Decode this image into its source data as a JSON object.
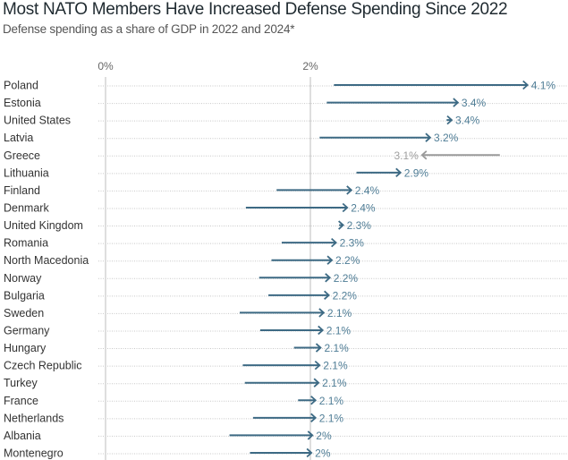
{
  "chart_data": {
    "type": "arrow",
    "title": "Most NATO Members Have Increased Defense Spending Since 2022",
    "subtitle": "Defense spending as a share of GDP in 2022 and 2024*",
    "x_ticks": [
      "0%",
      "2%"
    ],
    "x_tick_values": [
      0,
      2
    ],
    "xlim": [
      0,
      4.4
    ],
    "grid": "dotted horizontal row lines, solid vertical lines at ticks",
    "colors": {
      "increase": "#3d6a84",
      "increase_label": "#4f7d96",
      "decrease": "#9a9a9a",
      "decrease_label": "#a0a0a0"
    },
    "rows": [
      {
        "country": "Poland",
        "v2022": 2.23,
        "v2024": 4.12,
        "label": "4.1%"
      },
      {
        "country": "Estonia",
        "v2022": 2.16,
        "v2024": 3.44,
        "label": "3.4%"
      },
      {
        "country": "United States",
        "v2022": 3.33,
        "v2024": 3.38,
        "label": "3.4%"
      },
      {
        "country": "Latvia",
        "v2022": 2.09,
        "v2024": 3.17,
        "label": "3.2%"
      },
      {
        "country": "Greece",
        "v2022": 3.85,
        "v2024": 3.09,
        "label": "3.1%"
      },
      {
        "country": "Lithuania",
        "v2022": 2.45,
        "v2024": 2.88,
        "label": "2.9%"
      },
      {
        "country": "Finland",
        "v2022": 1.67,
        "v2024": 2.4,
        "label": "2.4%"
      },
      {
        "country": "Denmark",
        "v2022": 1.37,
        "v2024": 2.36,
        "label": "2.4%"
      },
      {
        "country": "United Kingdom",
        "v2022": 2.28,
        "v2024": 2.32,
        "label": "2.3%"
      },
      {
        "country": "Romania",
        "v2022": 1.72,
        "v2024": 2.25,
        "label": "2.3%"
      },
      {
        "country": "North Macedonia",
        "v2022": 1.62,
        "v2024": 2.21,
        "label": "2.2%"
      },
      {
        "country": "Norway",
        "v2022": 1.5,
        "v2024": 2.19,
        "label": "2.2%"
      },
      {
        "country": "Bulgaria",
        "v2022": 1.59,
        "v2024": 2.18,
        "label": "2.2%"
      },
      {
        "country": "Sweden",
        "v2022": 1.31,
        "v2024": 2.13,
        "label": "2.1%"
      },
      {
        "country": "Germany",
        "v2022": 1.51,
        "v2024": 2.12,
        "label": "2.1%"
      },
      {
        "country": "Hungary",
        "v2022": 1.84,
        "v2024": 2.1,
        "label": "2.1%"
      },
      {
        "country": "Czech Republic",
        "v2022": 1.34,
        "v2024": 2.09,
        "label": "2.1%"
      },
      {
        "country": "Turkey",
        "v2022": 1.36,
        "v2024": 2.08,
        "label": "2.1%"
      },
      {
        "country": "France",
        "v2022": 1.88,
        "v2024": 2.05,
        "label": "2.1%"
      },
      {
        "country": "Netherlands",
        "v2022": 1.44,
        "v2024": 2.05,
        "label": "2.1%"
      },
      {
        "country": "Albania",
        "v2022": 1.21,
        "v2024": 2.02,
        "label": "2%"
      },
      {
        "country": "Montenegro",
        "v2022": 1.41,
        "v2024": 2.01,
        "label": "2%"
      }
    ]
  }
}
